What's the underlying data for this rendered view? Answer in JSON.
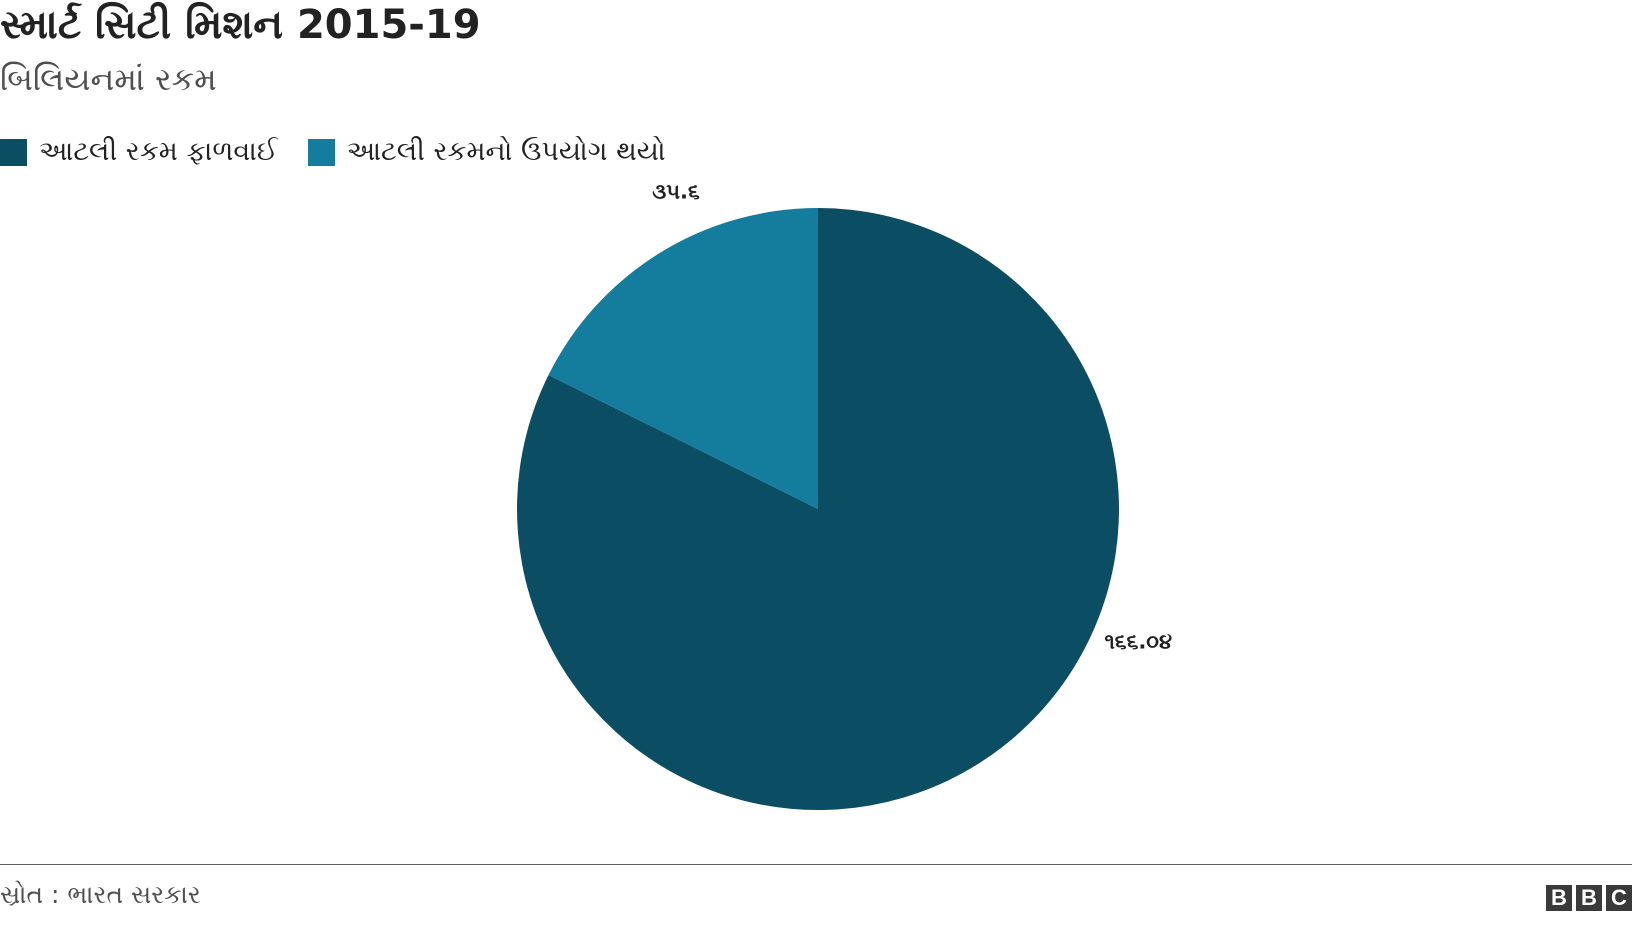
{
  "header": {
    "title": "સ્માર્ટ સિટી મિશન 2015-19",
    "subtitle": "બિલિયનમાં રકમ"
  },
  "legend": [
    {
      "label": "આટલી રકમ ફાળવાઈ",
      "color": "#0b4d62"
    },
    {
      "label": "આટલી રકમનો ઉપયોગ થયો",
      "color": "#147c9d"
    }
  ],
  "chart_data": {
    "type": "pie",
    "title": "સ્માર્ટ સિટી મિશન 2015-19",
    "subtitle": "બિલિયનમાં રકમ",
    "slices": [
      {
        "name": "આટલી રકમ ફાળવાઈ",
        "value": 166.04,
        "label": "૧૬૬.૦૪",
        "color": "#0b4d62"
      },
      {
        "name": "આટલી રકમનો ઉપયોગ થયો",
        "value": 35.6,
        "label": "૩૫.૬",
        "color": "#147c9d"
      }
    ],
    "legend_position": "top-left"
  },
  "footer": {
    "source": "સ્રોત : ભારત સરકાર",
    "logo": [
      "B",
      "B",
      "C"
    ]
  }
}
